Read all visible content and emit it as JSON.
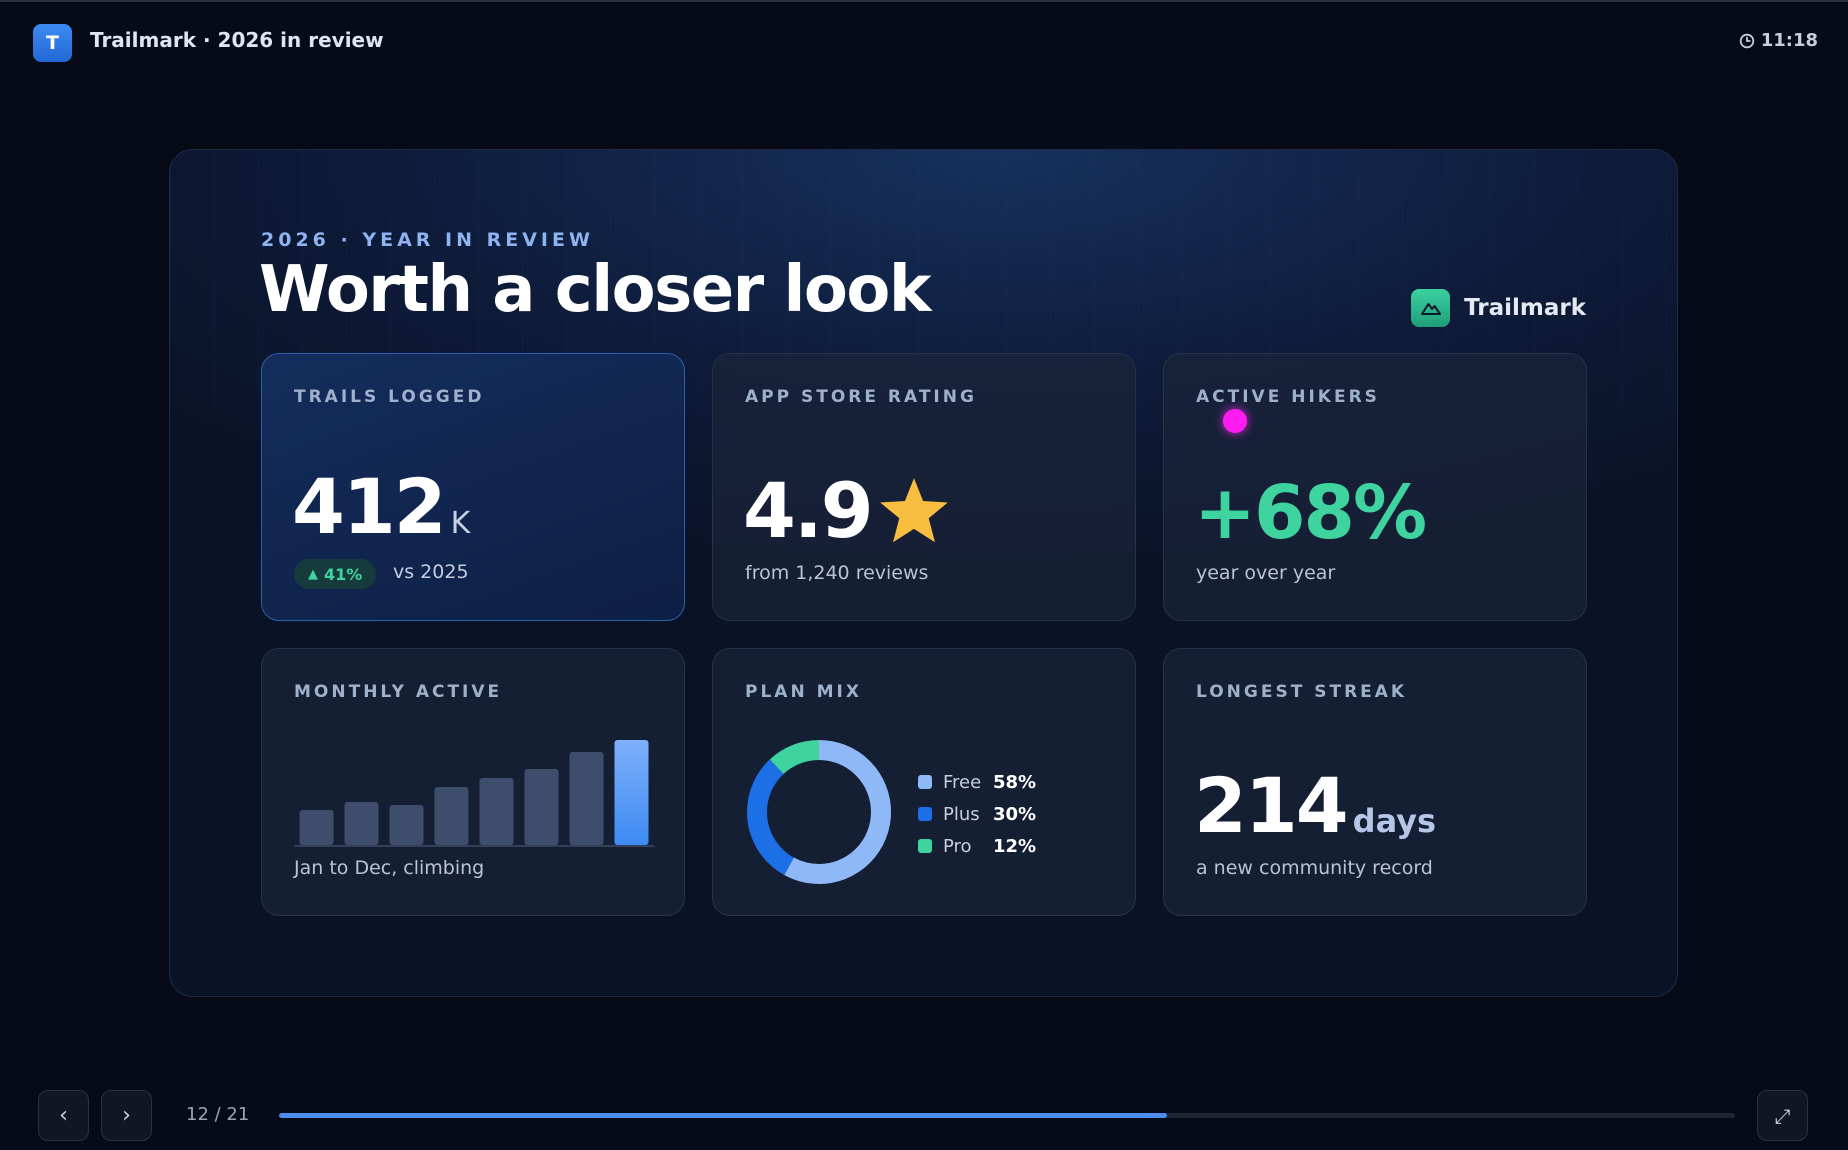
{
  "app": {
    "icon_letter": "T",
    "title": "Trailmark · 2026 in review",
    "clock": "11:18"
  },
  "slide": {
    "eyebrow": "2026 · YEAR IN REVIEW",
    "headline": "Worth a closer look",
    "brand_name": "Trailmark",
    "accent": "#4d8ef0",
    "cards": {
      "trails": {
        "label": "TRAILS LOGGED",
        "value": "412",
        "unit": "K",
        "badge_arrow": "▲",
        "badge": "41%",
        "badge_color": "#3fd3a0",
        "comparison": "vs 2025"
      },
      "rating": {
        "label": "APP STORE RATING",
        "value": "4.9",
        "star": "★",
        "star_color": "#f9bd3f",
        "sub": "from 1,240 reviews"
      },
      "hikers": {
        "label": "ACTIVE HIKERS",
        "value": "+68%",
        "value_color": "#3fd3a0",
        "sub": "year over year"
      },
      "monthly": {
        "label": "MONTHLY ACTIVE",
        "sub": "Jan to Dec, climbing"
      },
      "plan": {
        "label": "PLAN MIX"
      },
      "streak": {
        "label": "LONGEST STREAK",
        "value": "214",
        "unit": "days",
        "sub": "a new community record"
      }
    }
  },
  "chart_data": [
    {
      "type": "bar",
      "categories": [
        "1",
        "2",
        "3",
        "4",
        "5",
        "6",
        "7",
        "8"
      ],
      "values": [
        35,
        43,
        40,
        58,
        67,
        76,
        93,
        105
      ],
      "highlight_last": true,
      "bar_color": "#3f4d6c",
      "highlight_color": "#3d8bf2"
    },
    {
      "type": "pie",
      "donut": true,
      "slices": [
        {
          "name": "Free",
          "value": 58,
          "label": "58%",
          "color": "#8fb8f7"
        },
        {
          "name": "Plus",
          "value": 30,
          "label": "30%",
          "color": "#1d6fe6"
        },
        {
          "name": "Pro",
          "value": 12,
          "label": "12%",
          "color": "#3fd3a0"
        }
      ]
    }
  ],
  "footer": {
    "prev_label": "‹",
    "next_label": "›",
    "page_count": "12 / 21",
    "progress_fraction": 0.61,
    "fullscreen_label": "⤢"
  }
}
